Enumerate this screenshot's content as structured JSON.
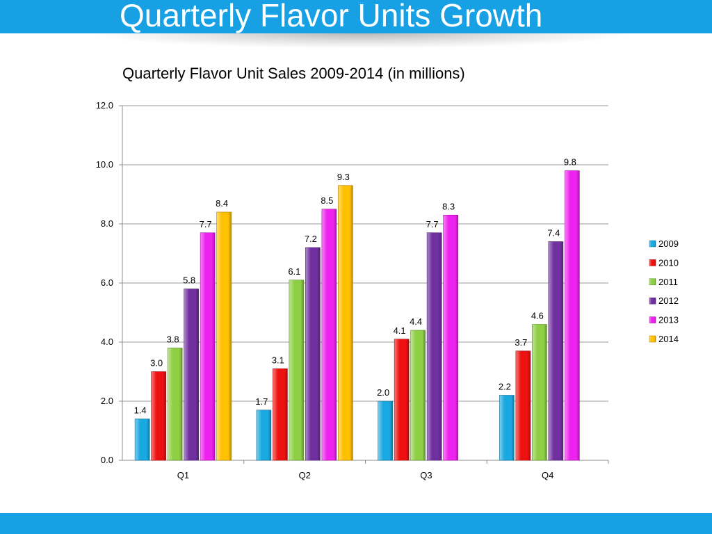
{
  "slide": {
    "title": "Quarterly Flavor Units Growth"
  },
  "chart_data": {
    "type": "bar",
    "title": "Quarterly Flavor Unit Sales 2009-2014 (in millions)",
    "xlabel": "",
    "ylabel": "",
    "categories": [
      "Q1",
      "Q2",
      "Q3",
      "Q4"
    ],
    "ylim": [
      0,
      12
    ],
    "yticks": [
      "0.0",
      "2.0",
      "4.0",
      "6.0",
      "8.0",
      "10.0",
      "12.0"
    ],
    "grid": true,
    "legend_position": "right",
    "series": [
      {
        "name": "2009",
        "color": "#1aa8e0",
        "values": [
          1.4,
          1.7,
          2.0,
          2.2
        ]
      },
      {
        "name": "2010",
        "color": "#ee1111",
        "values": [
          3.0,
          3.1,
          4.1,
          3.7
        ]
      },
      {
        "name": "2011",
        "color": "#8ecf45",
        "values": [
          3.8,
          6.1,
          4.4,
          4.6
        ]
      },
      {
        "name": "2012",
        "color": "#7030a0",
        "values": [
          5.8,
          7.2,
          7.7,
          7.4
        ]
      },
      {
        "name": "2013",
        "color": "#ee22ee",
        "values": [
          7.7,
          8.5,
          8.3,
          9.8
        ]
      },
      {
        "name": "2014",
        "color": "#ffc000",
        "values": [
          8.4,
          9.3,
          null,
          null
        ]
      }
    ]
  }
}
